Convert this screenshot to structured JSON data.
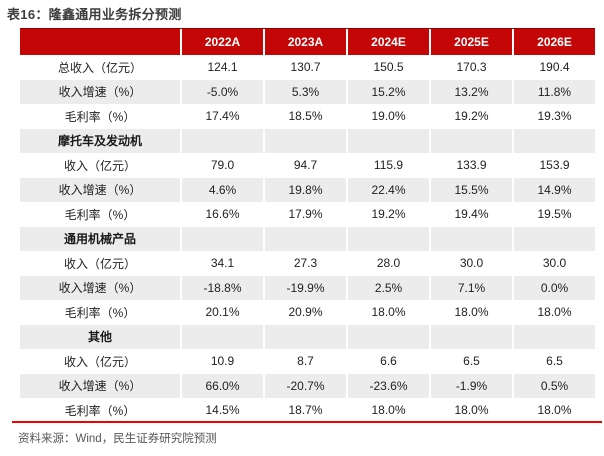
{
  "title": "表16：隆鑫通用业务拆分预测",
  "source": "资料来源：Wind，民生证券研究院预测",
  "colors": {
    "header_red": "#c40606",
    "header_top_border": "#960000",
    "zebra_gray": "#ececec",
    "divider_red": "#ee0202",
    "title_text": "#3d3d3d",
    "body_text": "#222222",
    "source_text": "#565656"
  },
  "table": {
    "columns": [
      "2022A",
      "2023A",
      "2024E",
      "2025E",
      "2026E"
    ],
    "rows": [
      {
        "type": "data",
        "label": "总收入（亿元）",
        "values": [
          "124.1",
          "130.7",
          "150.5",
          "170.3",
          "190.4"
        ]
      },
      {
        "type": "data",
        "label": "收入增速（%）",
        "values": [
          "-5.0%",
          "5.3%",
          "15.2%",
          "13.2%",
          "11.8%"
        ]
      },
      {
        "type": "data",
        "label": "毛利率（%）",
        "values": [
          "17.4%",
          "18.5%",
          "19.0%",
          "19.2%",
          "19.3%"
        ]
      },
      {
        "type": "section",
        "label": "摩托车及发动机",
        "values": [
          "",
          "",
          "",
          "",
          ""
        ]
      },
      {
        "type": "data",
        "label": "收入（亿元）",
        "values": [
          "79.0",
          "94.7",
          "115.9",
          "133.9",
          "153.9"
        ]
      },
      {
        "type": "data",
        "label": "收入增速（%）",
        "values": [
          "4.6%",
          "19.8%",
          "22.4%",
          "15.5%",
          "14.9%"
        ]
      },
      {
        "type": "data",
        "label": "毛利率（%）",
        "values": [
          "16.6%",
          "17.9%",
          "19.2%",
          "19.4%",
          "19.5%"
        ]
      },
      {
        "type": "section",
        "label": "通用机械产品",
        "values": [
          "",
          "",
          "",
          "",
          ""
        ]
      },
      {
        "type": "data",
        "label": "收入（亿元）",
        "values": [
          "34.1",
          "27.3",
          "28.0",
          "30.0",
          "30.0"
        ]
      },
      {
        "type": "data",
        "label": "收入增速（%）",
        "values": [
          "-18.8%",
          "-19.9%",
          "2.5%",
          "7.1%",
          "0.0%"
        ]
      },
      {
        "type": "data",
        "label": "毛利率（%）",
        "values": [
          "20.1%",
          "20.9%",
          "18.0%",
          "18.0%",
          "18.0%"
        ]
      },
      {
        "type": "section",
        "label": "其他",
        "values": [
          "",
          "",
          "",
          "",
          ""
        ]
      },
      {
        "type": "data",
        "label": "收入（亿元）",
        "values": [
          "10.9",
          "8.7",
          "6.6",
          "6.5",
          "6.5"
        ]
      },
      {
        "type": "data",
        "label": "收入增速（%）",
        "values": [
          "66.0%",
          "-20.7%",
          "-23.6%",
          "-1.9%",
          "0.5%"
        ]
      },
      {
        "type": "data",
        "label": "毛利率（%）",
        "values": [
          "14.5%",
          "18.7%",
          "18.0%",
          "18.0%",
          "18.0%"
        ]
      }
    ]
  }
}
